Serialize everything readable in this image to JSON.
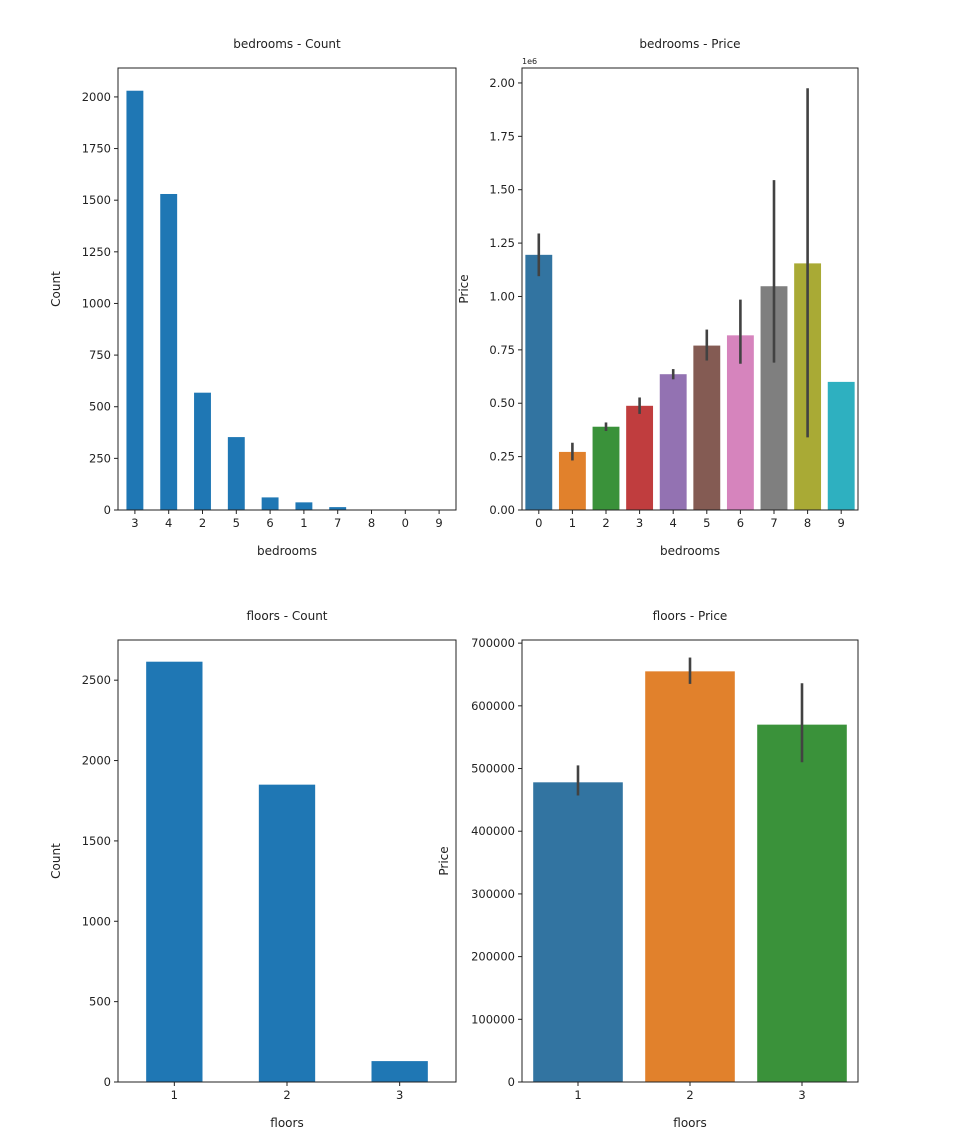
{
  "chart_data": [
    {
      "type": "bar",
      "title": "bedrooms - Count",
      "xlabel": "bedrooms",
      "ylabel": "Count",
      "categories": [
        "3",
        "4",
        "2",
        "5",
        "6",
        "1",
        "7",
        "8",
        "0",
        "9"
      ],
      "values": [
        2030,
        1530,
        568,
        353,
        61,
        37,
        14,
        2,
        2,
        1
      ],
      "ylim": [
        0,
        2140
      ],
      "yticks": [
        0,
        250,
        500,
        750,
        1000,
        1250,
        1500,
        1750,
        2000
      ],
      "colors": [
        "#1f77b4"
      ],
      "grid": false
    },
    {
      "type": "bar",
      "title": "bedrooms - Price",
      "xlabel": "bedrooms",
      "ylabel": "Price",
      "offset_text": "1e6",
      "categories": [
        "0",
        "1",
        "2",
        "3",
        "4",
        "5",
        "6",
        "7",
        "8",
        "9"
      ],
      "values": [
        1195000,
        272000,
        390000,
        488000,
        636000,
        770000,
        818000,
        1048000,
        1155000,
        600000
      ],
      "error_low": [
        1095000,
        232000,
        370000,
        450000,
        612000,
        700000,
        685000,
        690000,
        340000,
        null
      ],
      "error_high": [
        1295000,
        315000,
        410000,
        527000,
        660000,
        845000,
        985000,
        1545000,
        1975000,
        null
      ],
      "ylim": [
        0,
        2070000
      ],
      "yticks": [
        0,
        250000,
        500000,
        750000,
        1000000,
        1250000,
        1500000,
        1750000,
        2000000
      ],
      "ytick_labels": [
        "0.00",
        "0.25",
        "0.50",
        "0.75",
        "1.00",
        "1.25",
        "1.50",
        "1.75",
        "2.00"
      ],
      "colors": [
        "#3274a1",
        "#e1812c",
        "#3a923a",
        "#c03d3e",
        "#9372b2",
        "#845b53",
        "#d684bd",
        "#7f7f7f",
        "#a9aa35",
        "#2eb0c0"
      ],
      "grid": false
    },
    {
      "type": "bar",
      "title": "floors - Count",
      "xlabel": "floors",
      "ylabel": "Count",
      "categories": [
        "1",
        "2",
        "3"
      ],
      "values": [
        2615,
        1850,
        130
      ],
      "ylim": [
        0,
        2750
      ],
      "yticks": [
        0,
        500,
        1000,
        1500,
        2000,
        2500
      ],
      "colors": [
        "#1f77b4"
      ],
      "grid": false
    },
    {
      "type": "bar",
      "title": "floors - Price",
      "xlabel": "floors",
      "ylabel": "Price",
      "categories": [
        "1",
        "2",
        "3"
      ],
      "values": [
        478000,
        655000,
        570000
      ],
      "error_low": [
        457000,
        635000,
        510000
      ],
      "error_high": [
        505000,
        677000,
        636000
      ],
      "ylim": [
        0,
        705000
      ],
      "yticks": [
        0,
        100000,
        200000,
        300000,
        400000,
        500000,
        600000,
        700000
      ],
      "ytick_labels": [
        "0",
        "100000",
        "200000",
        "300000",
        "400000",
        "500000",
        "600000",
        "700000"
      ],
      "colors": [
        "#3274a1",
        "#e1812c",
        "#3a923a"
      ],
      "grid": false
    }
  ]
}
